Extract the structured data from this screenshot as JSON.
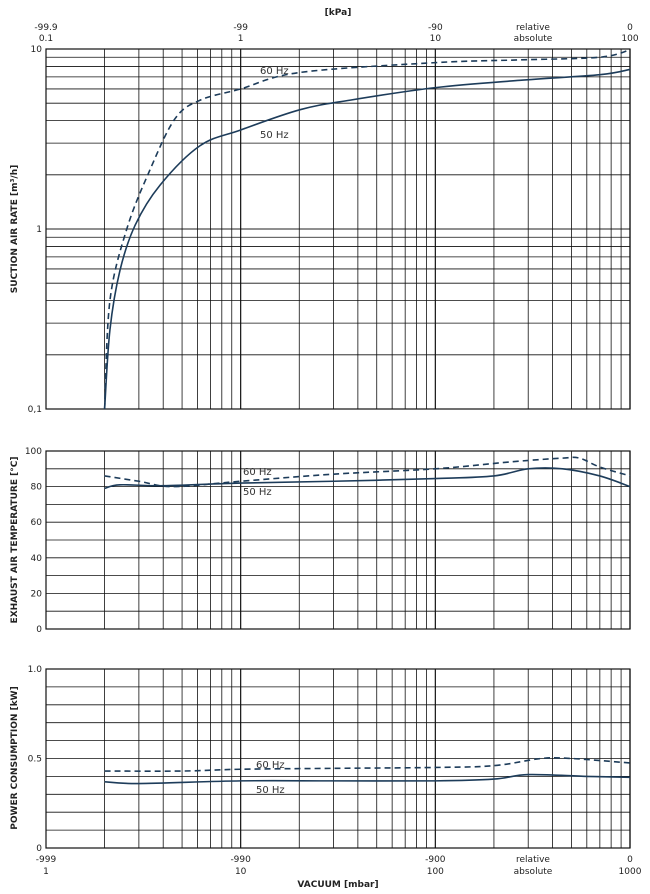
{
  "top_axis": {
    "title": "[kPa]",
    "relative_labels": [
      "-99.9",
      "-99",
      "-90",
      "0"
    ],
    "absolute_labels": [
      "0.1",
      "1",
      "10",
      "100"
    ],
    "relative_word": "relative",
    "absolute_word": "absolute"
  },
  "bottom_axis": {
    "title": "VACUUM [mbar]",
    "relative_labels": [
      "-999",
      "-990",
      "-900",
      "0"
    ],
    "absolute_labels": [
      "1",
      "10",
      "100",
      "1000"
    ],
    "relative_word": "relative",
    "absolute_word": "absolute"
  },
  "colors": {
    "curve": "#1d3c5a",
    "grid": "#111111"
  },
  "chart_data": [
    {
      "type": "line",
      "title": "",
      "xlabel": "VACUUM [mbar]",
      "ylabel": "SUCTION AIR RATE [m³/h]",
      "xscale": "log",
      "xlim": [
        1,
        1000
      ],
      "yscale": "log",
      "ylim": [
        0.1,
        10
      ],
      "yticks": [
        {
          "v": 10,
          "label": "10"
        },
        {
          "v": 1,
          "label": "1"
        },
        {
          "v": 0.1,
          "label": "0,1"
        }
      ],
      "grid": true,
      "series": [
        {
          "name": "60 Hz",
          "style": "dashed",
          "x": [
            2,
            2.13,
            2.6,
            3.4,
            4.6,
            6.2,
            10,
            20,
            100,
            272,
            700,
            1000
          ],
          "y": [
            0.1,
            0.4,
            1.0,
            2.1,
            4.1,
            5.2,
            6.0,
            7.4,
            8.4,
            8.7,
            9.0,
            9.9
          ]
        },
        {
          "name": "50 Hz",
          "style": "solid",
          "x": [
            2,
            2.13,
            2.4,
            2.87,
            3.85,
            6.18,
            10,
            20.2,
            36.6,
            100,
            272,
            700,
            1000
          ],
          "y": [
            0.1,
            0.275,
            0.59,
            1.05,
            1.75,
            2.9,
            3.55,
            4.6,
            5.2,
            6.1,
            6.7,
            7.2,
            7.7
          ]
        }
      ],
      "annotations": [
        "60 Hz",
        "50 Hz"
      ]
    },
    {
      "type": "line",
      "title": "",
      "xlabel": "VACUUM [mbar]",
      "ylabel": "EXHAUST AIR TEMPERATURE [°C]",
      "xscale": "log",
      "xlim": [
        1,
        1000
      ],
      "ylim": [
        0,
        100
      ],
      "yticks": [
        {
          "v": 100,
          "label": "100"
        },
        {
          "v": 80,
          "label": "80"
        },
        {
          "v": 60,
          "label": "60"
        },
        {
          "v": 40,
          "label": "40"
        },
        {
          "v": 20,
          "label": "20"
        },
        {
          "v": 0,
          "label": "0"
        }
      ],
      "ygrid_step": 10,
      "grid": true,
      "series": [
        {
          "name": "60 Hz",
          "style": "dashed",
          "x": [
            2,
            3,
            4.5,
            10,
            30,
            100,
            250,
            450,
            550,
            700,
            1000
          ],
          "y": [
            86,
            83,
            80,
            83,
            87,
            90,
            94,
            96,
            96,
            91,
            86
          ]
        },
        {
          "name": "50 Hz",
          "style": "solid",
          "x": [
            2,
            2.4,
            4,
            10,
            30,
            100,
            200,
            300,
            450,
            700,
            1000
          ],
          "y": [
            79,
            81,
            80.5,
            82,
            83,
            84.5,
            86,
            90,
            90,
            86,
            80
          ]
        }
      ],
      "annotations": [
        "60 Hz",
        "50 Hz"
      ]
    },
    {
      "type": "line",
      "title": "",
      "xlabel": "VACUUM [mbar]",
      "ylabel": "POWER CONSUMPTION [kW]",
      "xscale": "log",
      "xlim": [
        1,
        1000
      ],
      "ylim": [
        0,
        1.0
      ],
      "yticks": [
        {
          "v": 1.0,
          "label": "1.0"
        },
        {
          "v": 0.5,
          "label": "0.5"
        },
        {
          "v": 0,
          "label": "0"
        }
      ],
      "ygrid_step": 0.1,
      "grid": true,
      "series": [
        {
          "name": "60 Hz",
          "style": "dashed",
          "x": [
            2,
            5,
            10,
            30,
            100,
            200,
            350,
            500,
            1000
          ],
          "y": [
            0.43,
            0.43,
            0.44,
            0.445,
            0.45,
            0.46,
            0.5,
            0.5,
            0.475
          ]
        },
        {
          "name": "50 Hz",
          "style": "solid",
          "x": [
            2,
            3,
            10,
            30,
            100,
            200,
            300,
            600,
            1000
          ],
          "y": [
            0.37,
            0.36,
            0.375,
            0.375,
            0.375,
            0.385,
            0.41,
            0.4,
            0.395
          ]
        }
      ],
      "annotations": [
        "60 Hz",
        "50 Hz"
      ]
    }
  ]
}
